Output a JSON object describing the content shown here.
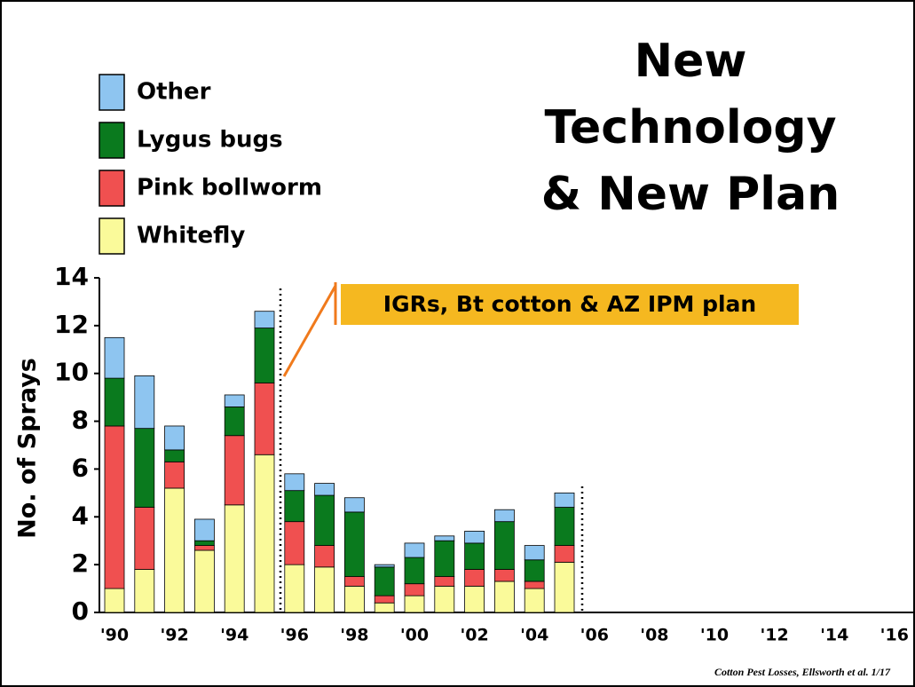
{
  "chart_data": {
    "type": "stacked_bar",
    "title": [
      "New",
      "Technology",
      "& New Plan"
    ],
    "annotation": "IGRs, Bt cotton & AZ IPM plan",
    "source": "Cotton Pest Losses, Ellsworth et al. 1/17",
    "y_label": "No. of Sprays",
    "categories": [
      "'90",
      null,
      "'92",
      null,
      "'94",
      null,
      "'96",
      null,
      "'98",
      null,
      "'00",
      null,
      "'02",
      null,
      "'04",
      null,
      "'06",
      null,
      "'08",
      null,
      "'10",
      null,
      "'12",
      null,
      "'14",
      null,
      "'16"
    ],
    "series": [
      {
        "name": "Whitefly",
        "color": "#fafa9a",
        "values": [
          1.0,
          1.8,
          5.2,
          2.6,
          4.5,
          6.6,
          2.0,
          1.9,
          1.1,
          0.4,
          0.7,
          1.1,
          1.1,
          1.3,
          1.0,
          2.1,
          null,
          null,
          null,
          null,
          null,
          null,
          null,
          null,
          null,
          null,
          null
        ]
      },
      {
        "name": "Pink bollworm",
        "color": "#f05050",
        "values": [
          6.8,
          2.6,
          1.1,
          0.2,
          2.9,
          3.0,
          1.8,
          0.9,
          0.4,
          0.3,
          0.5,
          0.4,
          0.7,
          0.5,
          0.3,
          0.7,
          null,
          null,
          null,
          null,
          null,
          null,
          null,
          null,
          null,
          null,
          null
        ]
      },
      {
        "name": "Lygus bugs",
        "color": "#0a7a1e",
        "values": [
          2.0,
          3.3,
          0.5,
          0.2,
          1.2,
          2.3,
          1.3,
          2.1,
          2.7,
          1.2,
          1.1,
          1.5,
          1.1,
          2.0,
          0.9,
          1.6,
          null,
          null,
          null,
          null,
          null,
          null,
          null,
          null,
          null,
          null,
          null
        ]
      },
      {
        "name": "Other",
        "color": "#8ec5f0",
        "values": [
          1.7,
          2.2,
          1.0,
          0.9,
          0.5,
          0.7,
          0.7,
          0.5,
          0.6,
          0.1,
          0.6,
          0.2,
          0.5,
          0.5,
          0.6,
          0.6,
          null,
          null,
          null,
          null,
          null,
          null,
          null,
          null,
          null,
          null,
          null
        ]
      }
    ],
    "ylim": [
      0,
      14
    ],
    "yticks": [
      0,
      2,
      4,
      6,
      8,
      10,
      12,
      14
    ]
  }
}
